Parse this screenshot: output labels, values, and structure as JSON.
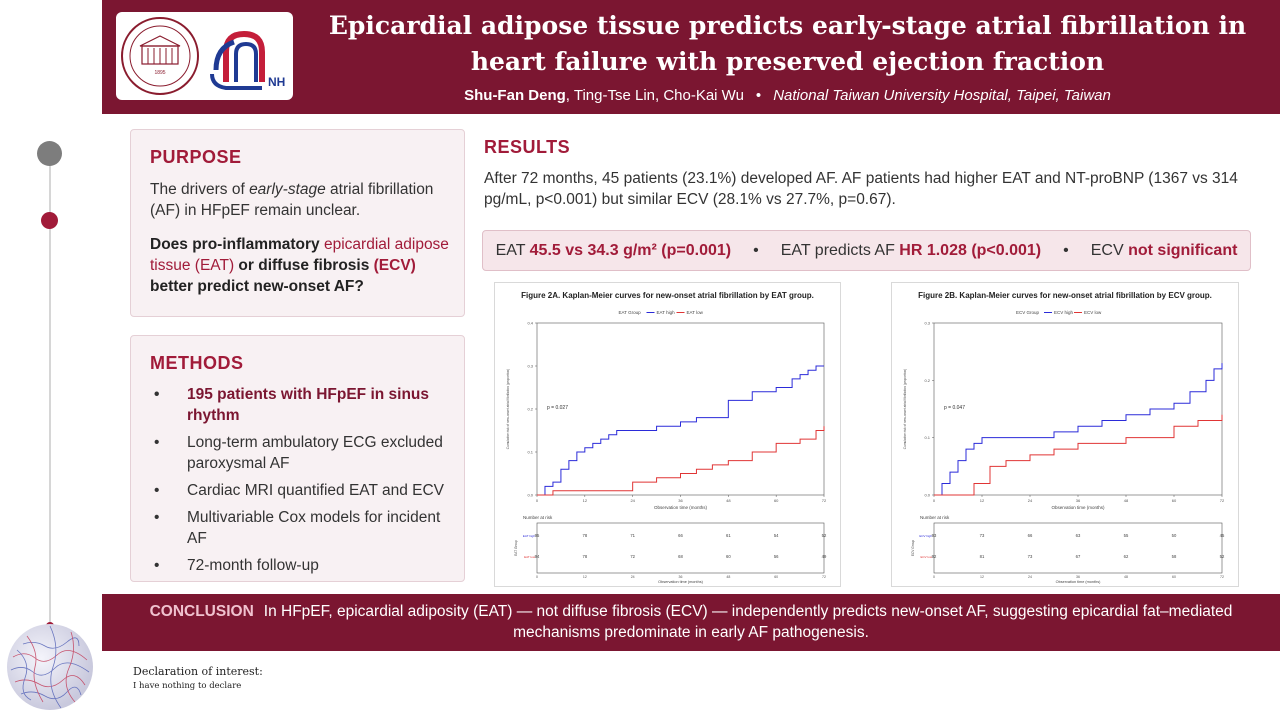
{
  "header": {
    "title": "Epicardial adipose tissue predicts early-stage atrial fibrillation in heart failure with preserved ejection fraction",
    "author_lead": "Shu-Fan Deng",
    "authors_rest": ", Ting-Tse Lin, Cho-Kai Wu",
    "separator": "•",
    "affiliation": "National Taiwan University Hospital, Taipei, Taiwan",
    "logo1_text": "1895",
    "logo2_text": "NH"
  },
  "purpose": {
    "heading": "PURPOSE",
    "text_a": "The drivers of ",
    "text_em": "early-stage",
    "text_b": " atrial fibrillation (AF) in HFpEF remain unclear.",
    "q_a": "Does pro-inflammatory ",
    "q_hl1": "epicardial adipose tissue (EAT)",
    "q_b": " or diffuse fibrosis ",
    "q_hl2": "(ECV)",
    "q_c": " better predict new-onset AF?"
  },
  "methods": {
    "heading": "METHODS",
    "items": [
      "195 patients with HFpEF in sinus rhythm",
      "Long-term ambulatory ECG excluded paroxysmal AF",
      "Cardiac MRI quantified EAT and ECV",
      "Multivariable Cox models for incident AF",
      "72-month follow-up"
    ]
  },
  "results": {
    "heading": "RESULTS",
    "text": "After 72 months, 45 patients (23.1%) developed AF. AF patients had higher EAT and NT-proBNP (1367 vs 314 pg/mL, p<0.001) but similar ECV (28.1% vs 27.7%, p=0.67).",
    "highlights": {
      "h1_label": "EAT ",
      "h1_value": "45.5 vs 34.3 g/m² (p=0.001)",
      "h2_label": "EAT predicts AF ",
      "h2_value": "HR 1.028 (p<0.001)",
      "h3_label": "ECV ",
      "h3_value": "not significant",
      "sep": "•"
    }
  },
  "figures": [
    {
      "caption": "Figure 2A. Kaplan-Meier curves for new-onset atrial fibrillation by EAT group.",
      "legend_title": "EAT Group",
      "legend_high": "EAT high",
      "legend_low": "EAT low",
      "pvalue": "p = 0.027",
      "xlabel": "Observation time (months)",
      "ylabel": "Cumulative risk of new-onset atrial fibrillation (proportion)",
      "risk_title": "Number at risk",
      "risk_ylabel": "EAT Group",
      "risk_high": [
        95,
        78,
        71,
        66,
        61,
        54,
        52
      ],
      "risk_low": [
        94,
        78,
        72,
        68,
        60,
        56,
        49
      ]
    },
    {
      "caption": "Figure 2B. Kaplan-Meier curves for new-onset atrial fibrillation by ECV group.",
      "legend_title": "ECV Group",
      "legend_high": "ECV high",
      "legend_low": "ECV low",
      "pvalue": "p = 0.047",
      "xlabel": "Observation time (months)",
      "ylabel": "Cumulative risk of new-onset atrial fibrillation (proportion)",
      "risk_title": "Number at risk",
      "risk_ylabel": "ECV Group",
      "risk_high": [
        93,
        73,
        66,
        63,
        55,
        50,
        45
      ],
      "risk_low": [
        92,
        81,
        73,
        67,
        62,
        58,
        52
      ]
    }
  ],
  "chart_data": [
    {
      "type": "line",
      "title": "Figure 2A. Kaplan-Meier curves for new-onset atrial fibrillation by EAT group.",
      "xlabel": "Observation time (months)",
      "ylabel": "Cumulative risk of new-onset atrial fibrillation (proportion)",
      "xticks": [
        0,
        12,
        24,
        36,
        48,
        60,
        72
      ],
      "yticks": [
        0.0,
        0.1,
        0.2,
        0.3,
        0.4
      ],
      "xlim": [
        0,
        72
      ],
      "ylim": [
        0,
        0.4
      ],
      "legend": "top",
      "annotation": "p = 0.027",
      "series": [
        {
          "name": "EAT high",
          "color": "#2b2bd9",
          "x": [
            0,
            2,
            4,
            6,
            8,
            10,
            12,
            14,
            16,
            18,
            20,
            24,
            30,
            36,
            40,
            48,
            54,
            60,
            64,
            66,
            68,
            70,
            72
          ],
          "y": [
            0.0,
            0.02,
            0.03,
            0.06,
            0.08,
            0.1,
            0.11,
            0.12,
            0.13,
            0.14,
            0.15,
            0.15,
            0.16,
            0.17,
            0.18,
            0.22,
            0.24,
            0.25,
            0.27,
            0.28,
            0.29,
            0.3,
            0.3
          ]
        },
        {
          "name": "EAT low",
          "color": "#e03535",
          "x": [
            0,
            4,
            12,
            18,
            24,
            30,
            36,
            40,
            44,
            48,
            54,
            60,
            66,
            70,
            72
          ],
          "y": [
            0.0,
            0.01,
            0.01,
            0.01,
            0.03,
            0.04,
            0.05,
            0.06,
            0.07,
            0.08,
            0.1,
            0.12,
            0.13,
            0.15,
            0.16
          ]
        }
      ]
    },
    {
      "type": "line",
      "title": "Figure 2B. Kaplan-Meier curves for new-onset atrial fibrillation by ECV group.",
      "xlabel": "Observation time (months)",
      "ylabel": "Cumulative risk of new-onset atrial fibrillation (proportion)",
      "xticks": [
        0,
        12,
        24,
        36,
        48,
        60,
        72
      ],
      "yticks": [
        0.0,
        0.1,
        0.2,
        0.3
      ],
      "xlim": [
        0,
        72
      ],
      "ylim": [
        0,
        0.3
      ],
      "legend": "top",
      "annotation": "p = 0.047",
      "series": [
        {
          "name": "ECV high",
          "color": "#2b2bd9",
          "x": [
            0,
            2,
            4,
            6,
            8,
            10,
            12,
            24,
            30,
            36,
            42,
            48,
            54,
            60,
            64,
            68,
            70,
            72
          ],
          "y": [
            0.0,
            0.02,
            0.04,
            0.06,
            0.08,
            0.09,
            0.1,
            0.1,
            0.11,
            0.12,
            0.13,
            0.14,
            0.15,
            0.16,
            0.18,
            0.2,
            0.22,
            0.23
          ]
        },
        {
          "name": "ECV low",
          "color": "#e03535",
          "x": [
            0,
            6,
            10,
            14,
            18,
            24,
            30,
            36,
            48,
            60,
            66,
            70,
            72
          ],
          "y": [
            0.0,
            0.0,
            0.02,
            0.05,
            0.06,
            0.07,
            0.08,
            0.09,
            0.1,
            0.12,
            0.13,
            0.13,
            0.14
          ]
        }
      ]
    }
  ],
  "conclusion": {
    "label": "CONCLUSION",
    "text": "In HFpEF, epicardial adiposity (EAT) — not diffuse fibrosis (ECV) — independently predicts new-onset AF, suggesting epicardial fat–mediated mechanisms predominate in early AF pathogenesis."
  },
  "declaration": {
    "title": "Declaration of interest:",
    "text": "I have nothing to declare"
  },
  "colors": {
    "brand": "#7b1631",
    "accent": "#a11b39",
    "series_high": "#2b2bd9",
    "series_low": "#e03535"
  }
}
